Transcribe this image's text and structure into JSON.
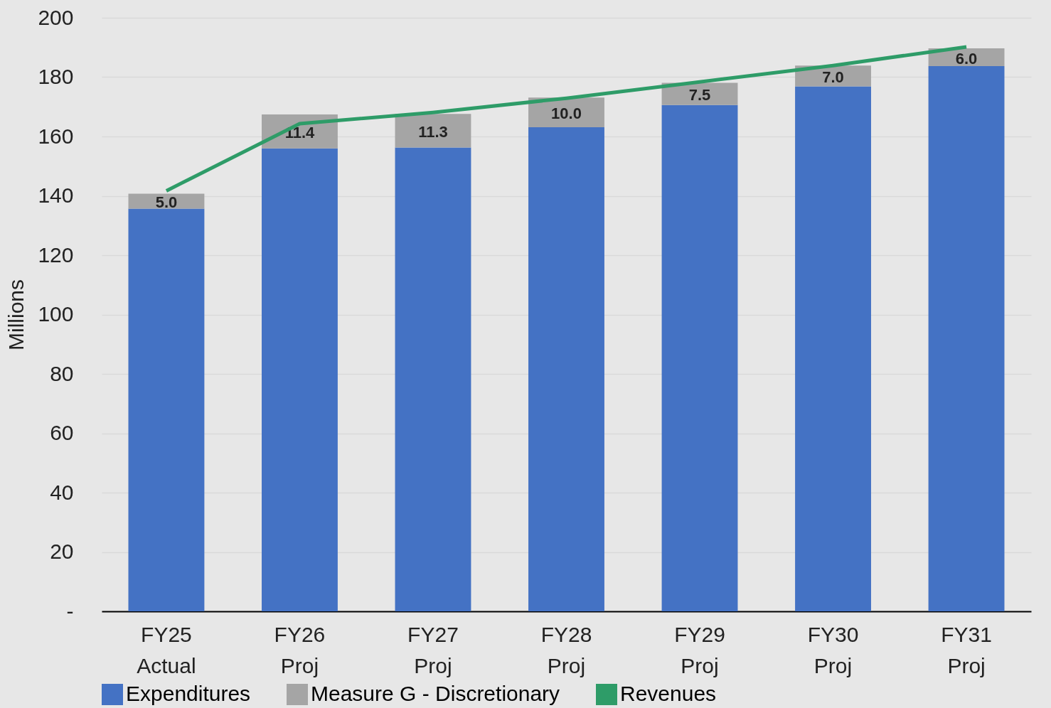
{
  "chart_data": {
    "type": "bar",
    "stacked": true,
    "ylabel": "Millions",
    "categories": [
      "FY25 Actual",
      "FY26 Proj",
      "FY27 Proj",
      "FY28 Proj",
      "FY29 Proj",
      "FY30 Proj",
      "FY31 Proj"
    ],
    "series": [
      {
        "name": "Expenditures",
        "color": "#4472c4",
        "values": [
          135.7,
          156.0,
          156.3,
          163.1,
          170.6,
          176.9,
          183.7
        ]
      },
      {
        "name": "Measure G - Discretionary",
        "color": "#a5a5a5",
        "values": [
          5.0,
          11.4,
          11.3,
          10.0,
          7.5,
          7.0,
          6.0
        ],
        "value_labels": [
          "5.0",
          "11.4",
          "11.3",
          "10.0",
          "7.5",
          "7.0",
          "6.0"
        ]
      },
      {
        "name": "Revenues",
        "type": "line",
        "color": "#2e9c68",
        "values": [
          141.7,
          164.3,
          168.1,
          172.9,
          178.4,
          183.9,
          190.2
        ]
      }
    ],
    "ylim": [
      0,
      200
    ],
    "yticks": [
      {
        "value": 0,
        "label": "-"
      },
      20,
      40,
      60,
      80,
      100,
      120,
      140,
      160,
      180,
      200
    ],
    "grid": "y",
    "legend": "bottom",
    "marker": "none"
  }
}
